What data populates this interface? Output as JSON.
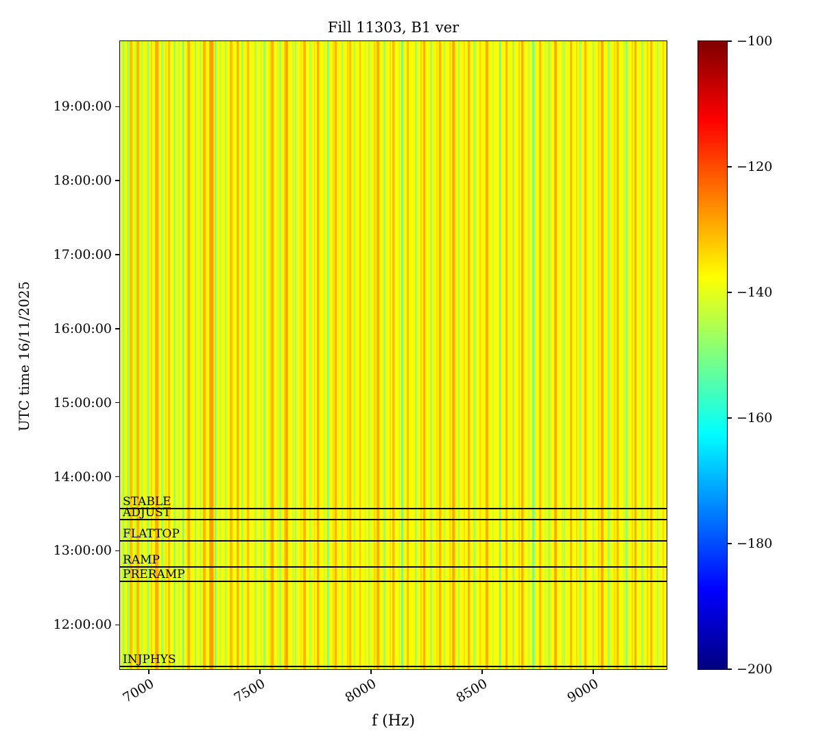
{
  "chart_data": {
    "type": "heatmap",
    "subtype": "spectrogram",
    "title": "Fill 11303, B1 ver",
    "xlabel": "f (Hz)",
    "ylabel": "UTC time 16/11/2025",
    "xlim": [
      6870,
      9330
    ],
    "x_ticks": [
      7000,
      7500,
      8000,
      8500,
      9000
    ],
    "x_tick_labels": [
      "7000",
      "7500",
      "8000",
      "8500",
      "9000"
    ],
    "y_time_start": "11:24:00",
    "y_time_end": "19:53:00",
    "y_ticks": [
      "12:00:00",
      "13:00:00",
      "14:00:00",
      "15:00:00",
      "16:00:00",
      "17:00:00",
      "18:00:00",
      "19:00:00"
    ],
    "grid": false,
    "colorbar": {
      "colormap": "jet",
      "vmin": -200,
      "vmax": -100,
      "tick_values": [
        -100,
        -120,
        -140,
        -160,
        -180,
        -200
      ],
      "tick_labels": [
        "−100",
        "−120",
        "−140",
        "−160",
        "−180",
        "−200"
      ]
    },
    "background_level_db": -138,
    "noise_amplitude_db": 1.5,
    "stripes_format": [
      "freq_hz",
      "width_hz",
      "level_db"
    ],
    "stripes": [
      [
        6885,
        10,
        -146
      ],
      [
        6905,
        8,
        -148
      ],
      [
        6920,
        12,
        -131
      ],
      [
        6937,
        6,
        -143
      ],
      [
        6950,
        14,
        -130
      ],
      [
        6968,
        8,
        -145
      ],
      [
        6995,
        10,
        -147
      ],
      [
        7012,
        8,
        -133
      ],
      [
        7035,
        16,
        -129
      ],
      [
        7060,
        8,
        -147
      ],
      [
        7078,
        6,
        -134
      ],
      [
        7090,
        10,
        -131
      ],
      [
        7115,
        8,
        -148
      ],
      [
        7135,
        6,
        -144
      ],
      [
        7155,
        7,
        -154
      ],
      [
        7180,
        12,
        -130
      ],
      [
        7210,
        8,
        -149
      ],
      [
        7232,
        6,
        -145
      ],
      [
        7250,
        10,
        -130
      ],
      [
        7280,
        18,
        -128
      ],
      [
        7300,
        7,
        -153
      ],
      [
        7322,
        6,
        -144
      ],
      [
        7345,
        8,
        -147
      ],
      [
        7370,
        12,
        -131
      ],
      [
        7400,
        10,
        -129
      ],
      [
        7420,
        7,
        -148
      ],
      [
        7445,
        10,
        -131
      ],
      [
        7480,
        8,
        -146
      ],
      [
        7505,
        6,
        -144
      ],
      [
        7520,
        8,
        -148
      ],
      [
        7545,
        6,
        -134
      ],
      [
        7555,
        10,
        -130
      ],
      [
        7580,
        6,
        -143
      ],
      [
        7590,
        8,
        -147
      ],
      [
        7610,
        6,
        -133
      ],
      [
        7620,
        12,
        -129
      ],
      [
        7648,
        6,
        -144
      ],
      [
        7660,
        8,
        -147
      ],
      [
        7685,
        6,
        -134
      ],
      [
        7700,
        10,
        -130
      ],
      [
        7725,
        6,
        -146
      ],
      [
        7745,
        6,
        -133
      ],
      [
        7760,
        10,
        -129
      ],
      [
        7790,
        6,
        -143
      ],
      [
        7805,
        8,
        -154
      ],
      [
        7830,
        6,
        -134
      ],
      [
        7840,
        10,
        -130
      ],
      [
        7870,
        8,
        -147
      ],
      [
        7895,
        6,
        -133
      ],
      [
        7905,
        8,
        -131
      ],
      [
        7925,
        6,
        -146
      ],
      [
        7950,
        8,
        -132
      ],
      [
        7975,
        6,
        -143
      ],
      [
        7990,
        8,
        -147
      ],
      [
        8015,
        6,
        -133
      ],
      [
        8030,
        12,
        -129
      ],
      [
        8060,
        8,
        -148
      ],
      [
        8085,
        6,
        -134
      ],
      [
        8100,
        10,
        -130
      ],
      [
        8125,
        6,
        -143
      ],
      [
        8140,
        7,
        -153
      ],
      [
        8165,
        8,
        -131
      ],
      [
        8200,
        8,
        -148
      ],
      [
        8225,
        6,
        -133
      ],
      [
        8240,
        10,
        -129
      ],
      [
        8270,
        8,
        -147
      ],
      [
        8295,
        6,
        -134
      ],
      [
        8310,
        8,
        -130
      ],
      [
        8330,
        6,
        -146
      ],
      [
        8355,
        6,
        -133
      ],
      [
        8370,
        10,
        -129
      ],
      [
        8395,
        8,
        -147
      ],
      [
        8420,
        6,
        -134
      ],
      [
        8440,
        10,
        -130
      ],
      [
        8465,
        8,
        -146
      ],
      [
        8490,
        6,
        -133
      ],
      [
        8520,
        12,
        -129
      ],
      [
        8550,
        6,
        -143
      ],
      [
        8580,
        8,
        -155
      ],
      [
        8610,
        10,
        -130
      ],
      [
        8640,
        8,
        -147
      ],
      [
        8665,
        6,
        -133
      ],
      [
        8680,
        10,
        -129
      ],
      [
        8710,
        6,
        -144
      ],
      [
        8730,
        8,
        -152
      ],
      [
        8760,
        10,
        -130
      ],
      [
        8785,
        6,
        -143
      ],
      [
        8800,
        8,
        -147
      ],
      [
        8830,
        12,
        -129
      ],
      [
        8860,
        6,
        -144
      ],
      [
        8870,
        8,
        -147
      ],
      [
        8900,
        10,
        -130
      ],
      [
        8925,
        6,
        -133
      ],
      [
        8940,
        8,
        -146
      ],
      [
        8965,
        10,
        -130
      ],
      [
        9000,
        8,
        -147
      ],
      [
        9025,
        6,
        -133
      ],
      [
        9040,
        10,
        -129
      ],
      [
        9070,
        8,
        -147
      ],
      [
        9095,
        6,
        -134
      ],
      [
        9110,
        10,
        -130
      ],
      [
        9140,
        6,
        -143
      ],
      [
        9150,
        8,
        -148
      ],
      [
        9175,
        6,
        -133
      ],
      [
        9190,
        10,
        -129
      ],
      [
        9220,
        8,
        -147
      ],
      [
        9245,
        6,
        -133
      ],
      [
        9260,
        10,
        -130
      ],
      [
        9290,
        8,
        -146
      ],
      [
        9315,
        6,
        -133
      ]
    ],
    "annotations": [
      {
        "label": "STABLE",
        "time": "13:34:00"
      },
      {
        "label": "ADJUST",
        "time": "13:25:00"
      },
      {
        "label": "FLATTOP",
        "time": "13:08:00"
      },
      {
        "label": "RAMP",
        "time": "12:47:00"
      },
      {
        "label": "PRERAMP",
        "time": "12:35:00"
      },
      {
        "label": "INJPHYS",
        "time": "11:26:00"
      }
    ]
  }
}
